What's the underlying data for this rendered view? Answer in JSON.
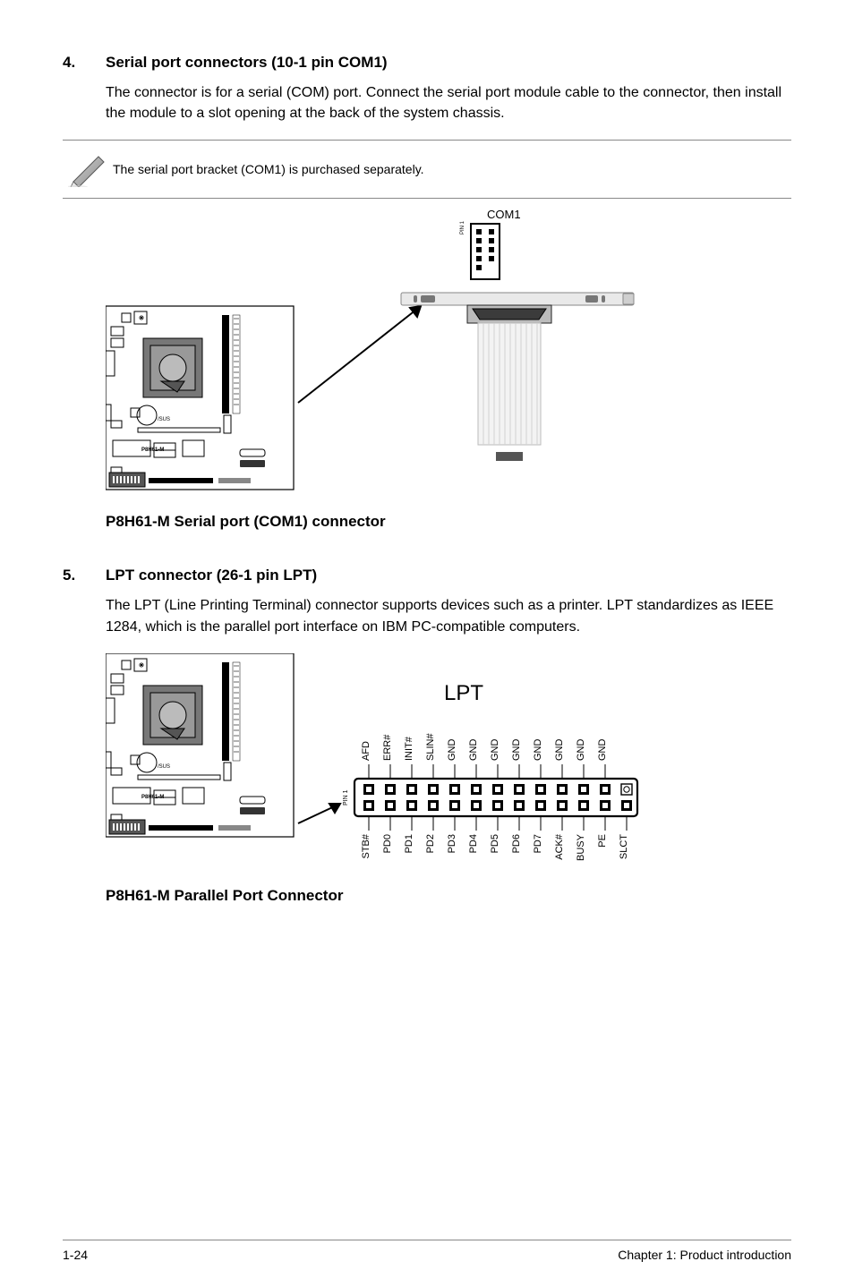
{
  "sections": [
    {
      "num": "4.",
      "title": "Serial port connectors (10-1 pin COM1)",
      "body": "The connector is for a serial (COM) port. Connect the serial port module cable to the connector, then install the module to a slot opening at the back of the system chassis.",
      "note": "The serial port bracket (COM1) is purchased separately.",
      "diagram": {
        "board_label": "P8H61-M",
        "conn_label": "COM1",
        "pin1_label": "PIN 1",
        "caption": "P8H61-M Serial port (COM1) connector"
      }
    },
    {
      "num": "5.",
      "title": "LPT connector (26-1 pin LPT)",
      "body": "The LPT (Line Printing Terminal) connector supports devices such as a printer. LPT standardizes as IEEE 1284, which is the parallel port interface on IBM PC-compatible computers.",
      "diagram": {
        "board_label": "P8H61-M",
        "title": "LPT",
        "pin1_label": "PIN 1",
        "top_pins": [
          "AFD",
          "ERR#",
          "INIT#",
          "SLIN#",
          "GND",
          "GND",
          "GND",
          "GND",
          "GND",
          "GND",
          "GND",
          "GND"
        ],
        "bottom_pins": [
          "STB#",
          "PD0",
          "PD1",
          "PD2",
          "PD3",
          "PD4",
          "PD5",
          "PD6",
          "PD7",
          "ACK#",
          "BUSY",
          "PE",
          "SLCT"
        ],
        "caption": "P8H61-M Parallel Port Connector"
      }
    }
  ],
  "footer": {
    "left": "1-24",
    "right": "Chapter 1: Product introduction"
  },
  "colors": {
    "text": "#000000",
    "rule": "#888888",
    "bg": "#ffffff"
  }
}
